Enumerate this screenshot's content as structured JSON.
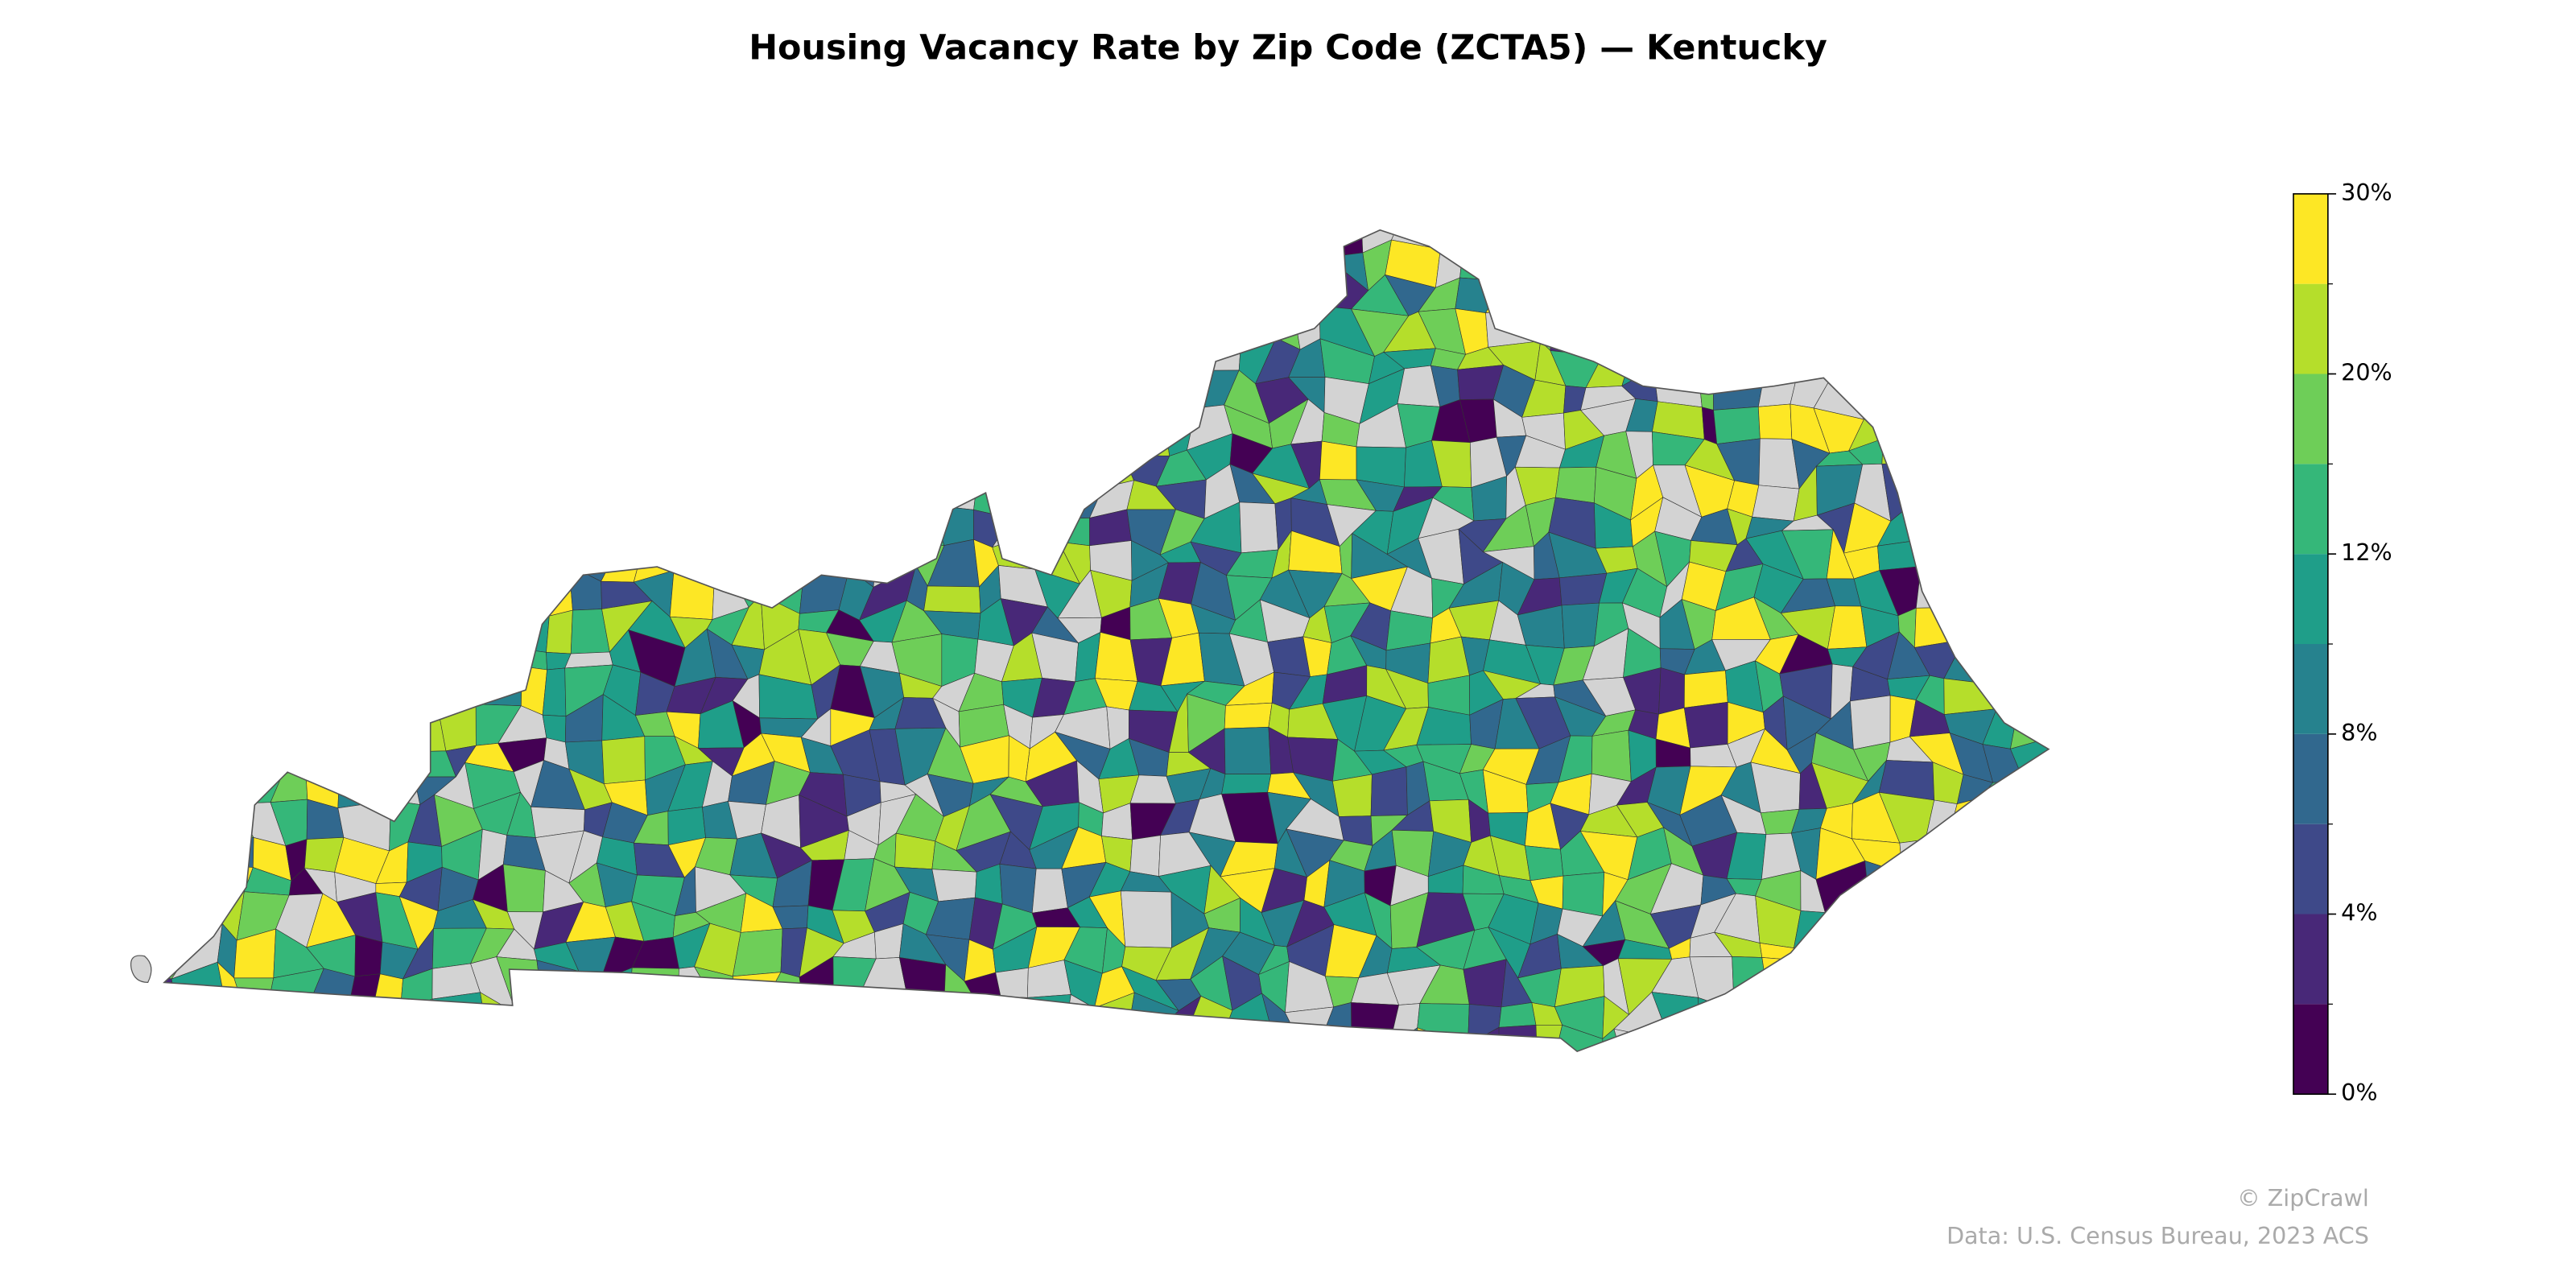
{
  "title": "Housing Vacancy Rate by Zip Code (ZCTA5) — Kentucky",
  "colorbar": {
    "boundaries": [
      0,
      2,
      4,
      6,
      8,
      10,
      12,
      16,
      20,
      25,
      30
    ],
    "colors": [
      "#440154",
      "#482878",
      "#3e4989",
      "#31688e",
      "#26828e",
      "#1f9e89",
      "#35b779",
      "#6ece58",
      "#b5de2b",
      "#fde725"
    ],
    "ticks": [
      {
        "value": 0,
        "label": "0%"
      },
      {
        "value": 4,
        "label": "4%"
      },
      {
        "value": 8,
        "label": "8%"
      },
      {
        "value": 12,
        "label": "12%"
      },
      {
        "value": 20,
        "label": "20%"
      },
      {
        "value": 30,
        "label": "30%"
      }
    ]
  },
  "credit": "© ZipCrawl",
  "source": "Data: U.S. Census Bureau, 2023 ACS"
}
